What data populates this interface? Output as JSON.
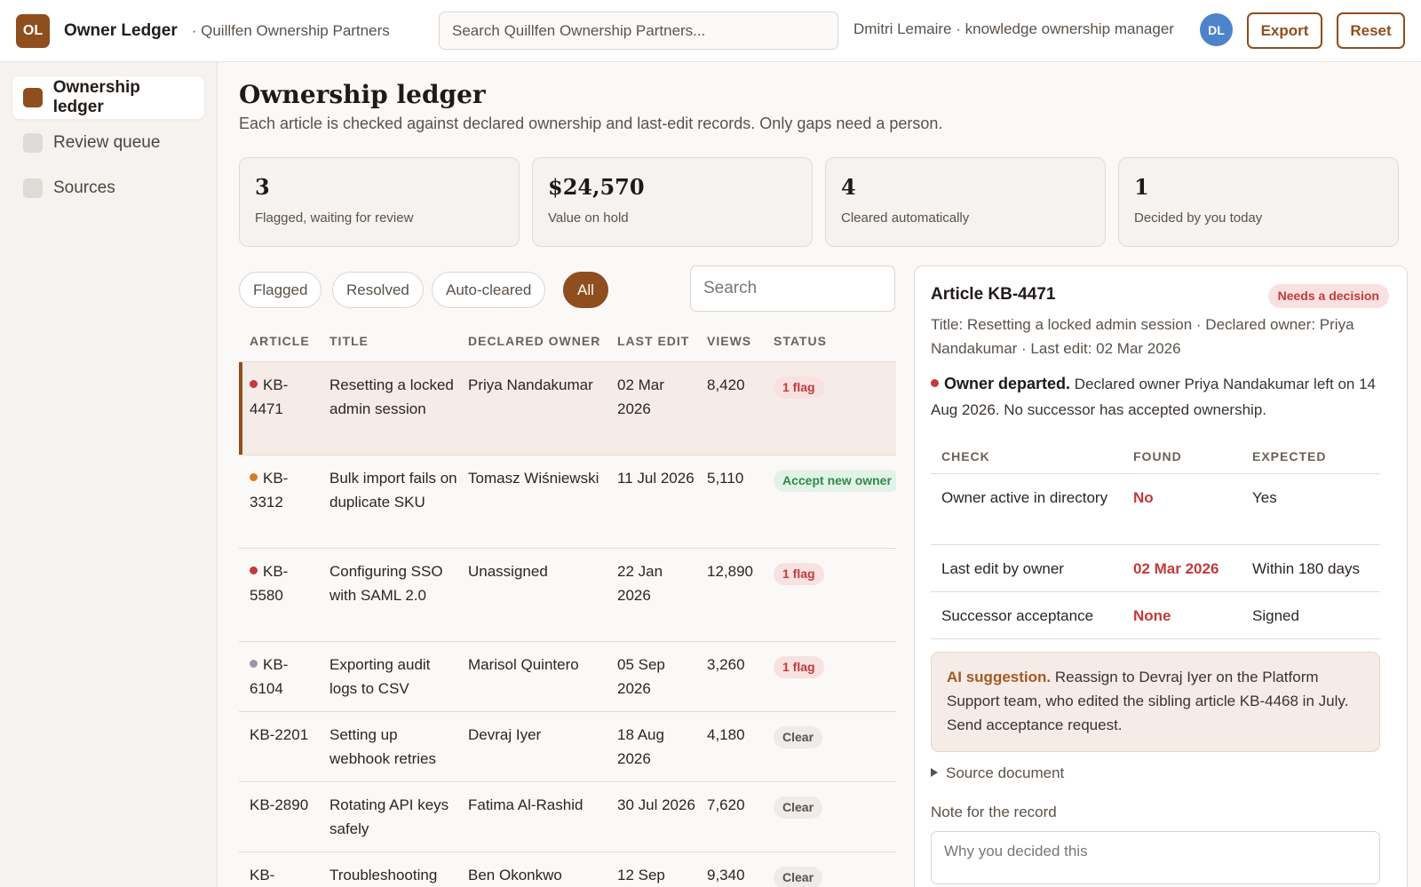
{
  "header": {
    "logo_initials": "OL",
    "app_name": "Owner Ledger",
    "org_name": "· Quillfen Ownership Partners",
    "search_placeholder": "Search Quillfen Ownership Partners...",
    "user_line": "Dmitri Lemaire · knowledge ownership manager",
    "avatar_initials": "DL",
    "export_label": "Export",
    "reset_label": "Reset"
  },
  "sidebar": {
    "items": [
      {
        "label": "Ownership ledger",
        "active": true
      },
      {
        "label": "Review queue",
        "active": false
      },
      {
        "label": "Sources",
        "active": false
      }
    ]
  },
  "main": {
    "title": "Ownership ledger",
    "subtitle": "Each article is checked against declared ownership and last-edit records. Only gaps need a person."
  },
  "stats": [
    {
      "value": "3",
      "label": "Flagged, waiting for review"
    },
    {
      "value": "$24,570",
      "label": "Value on hold"
    },
    {
      "value": "4",
      "label": "Cleared automatically"
    },
    {
      "value": "1",
      "label": "Decided by you today"
    }
  ],
  "filters": {
    "chips": [
      "Flagged",
      "Resolved",
      "Auto-cleared",
      "All"
    ],
    "active": "All",
    "search_placeholder": "Search"
  },
  "table": {
    "headers": {
      "article": "ARTICLE",
      "title": "TITLE",
      "owner": "DECLARED OWNER",
      "last_edit": "LAST EDIT",
      "views": "VIEWS",
      "status": "STATUS"
    },
    "rows": [
      {
        "article": "KB-4471",
        "title": "Resetting a locked admin session",
        "owner": "Priya Nandakumar",
        "last_edit": "02 Mar 2026",
        "views": "8,420",
        "status": "1 flag",
        "status_kind": "flag",
        "dot": "#c23a3a",
        "selected": true
      },
      {
        "article": "KB-3312",
        "title": "Bulk import fails on duplicate SKU",
        "owner": "Tomasz Wiśniewski",
        "last_edit": "11 Jul 2026",
        "views": "5,110",
        "status": "Accept new owner",
        "status_kind": "accept",
        "dot": "#d47a2a",
        "selected": false
      },
      {
        "article": "KB-5580",
        "title": "Configuring SSO with SAML 2.0",
        "owner": "Unassigned",
        "last_edit": "22 Jan 2026",
        "views": "12,890",
        "status": "1 flag",
        "status_kind": "flag",
        "dot": "#c23a3a",
        "selected": false
      },
      {
        "article": "KB-6104",
        "title": "Exporting audit logs to CSV",
        "owner": "Marisol Quintero",
        "last_edit": "05 Sep 2026",
        "views": "3,260",
        "status": "1 flag",
        "status_kind": "flag",
        "dot": "#9a97a6",
        "selected": false
      },
      {
        "article": "KB-2201",
        "title": "Setting up webhook retries",
        "owner": "Devraj Iyer",
        "last_edit": "18 Aug 2026",
        "views": "4,180",
        "status": "Clear",
        "status_kind": "clear",
        "dot": "",
        "selected": false
      },
      {
        "article": "KB-2890",
        "title": "Rotating API keys safely",
        "owner": "Fatima Al-Rashid",
        "last_edit": "30 Jul 2026",
        "views": "7,620",
        "status": "Clear",
        "status_kind": "clear",
        "dot": "",
        "selected": false
      },
      {
        "article": "KB-",
        "title": "Troubleshooting",
        "owner": "Ben Okonkwo",
        "last_edit": "12 Sep",
        "views": "9,340",
        "status": "Clear",
        "status_kind": "clear",
        "dot": "",
        "selected": false
      }
    ]
  },
  "detail": {
    "title": "Article KB-4471",
    "badge": "Needs a decision",
    "meta": "Title: Resetting a locked admin session · Declared owner: Priya Nandakumar · Last edit: 02 Mar 2026",
    "alert_title": "Owner departed.",
    "alert_text": " Declared owner Priya Nandakumar left on 14 Aug 2026. No successor has accepted ownership.",
    "checks_headers": {
      "check": "CHECK",
      "found": "FOUND",
      "expected": "EXPECTED"
    },
    "checks": [
      {
        "check": "Owner active in directory",
        "found": "No",
        "expected": "Yes"
      },
      {
        "check": "Last edit by owner",
        "found": "02 Mar 2026",
        "expected": "Within 180 days"
      },
      {
        "check": "Successor acceptance",
        "found": "None",
        "expected": "Signed"
      }
    ],
    "ai_label": "AI suggestion.",
    "ai_text": " Reassign to Devraj Iyer on the Platform Support team, who edited the sibling article KB-4468 in July. Send acceptance request.",
    "source_label": "Source document",
    "note_label": "Note for the record",
    "note_placeholder": "Why you decided this"
  }
}
